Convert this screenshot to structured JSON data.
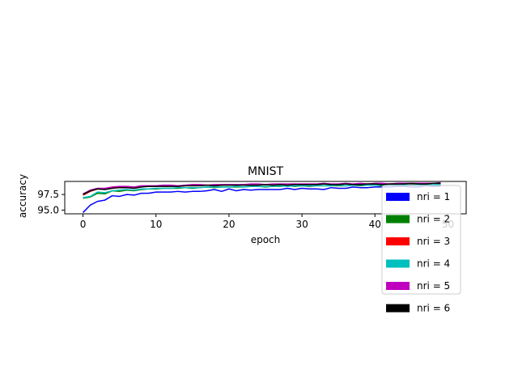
{
  "chart_data": {
    "type": "line",
    "title": "MNIST",
    "xlabel": "epoch",
    "ylabel": "accuracy",
    "xlim": [
      -2.5,
      52.5
    ],
    "ylim": [
      94.4,
      99.6
    ],
    "xticks": [
      0,
      10,
      20,
      30,
      40,
      50
    ],
    "xtick_labels": [
      "0",
      "10",
      "20",
      "30",
      "40",
      "50"
    ],
    "yticks": [
      95.0,
      97.5
    ],
    "ytick_labels": [
      "95.0",
      "97.5"
    ],
    "grid": false,
    "legend_position": "lower-right",
    "x": [
      0,
      1,
      2,
      3,
      4,
      5,
      6,
      7,
      8,
      9,
      10,
      11,
      12,
      13,
      14,
      15,
      16,
      17,
      18,
      19,
      20,
      21,
      22,
      23,
      24,
      25,
      26,
      27,
      28,
      29,
      30,
      31,
      32,
      33,
      34,
      35,
      36,
      37,
      38,
      39,
      40,
      41,
      42,
      43,
      44,
      45,
      46,
      47,
      48,
      49
    ],
    "series": [
      {
        "name": "nri = 1",
        "color": "#0000ff",
        "values": [
          94.6,
          95.8,
          96.4,
          96.6,
          97.3,
          97.2,
          97.5,
          97.4,
          97.7,
          97.7,
          97.9,
          97.9,
          97.9,
          98.0,
          97.9,
          98.0,
          98.0,
          98.1,
          98.3,
          98.0,
          98.4,
          98.1,
          98.3,
          98.2,
          98.3,
          98.3,
          98.3,
          98.3,
          98.5,
          98.3,
          98.5,
          98.4,
          98.4,
          98.3,
          98.6,
          98.5,
          98.5,
          98.7,
          98.6,
          98.6,
          98.7,
          98.7,
          98.7,
          98.8,
          98.8,
          98.7,
          98.7,
          98.9,
          98.8,
          98.8
        ]
      },
      {
        "name": "nri = 2",
        "color": "#008000",
        "values": [
          96.9,
          97.1,
          97.7,
          97.6,
          98.1,
          98.0,
          98.2,
          98.1,
          98.3,
          98.4,
          98.4,
          98.5,
          98.5,
          98.5,
          98.6,
          98.5,
          98.6,
          98.7,
          98.6,
          98.7,
          98.7,
          98.7,
          98.7,
          98.8,
          98.8,
          98.7,
          98.8,
          98.8,
          98.9,
          98.8,
          98.9,
          98.8,
          98.9,
          98.9,
          98.9,
          98.9,
          98.9,
          99.0,
          98.9,
          99.0,
          99.0,
          98.9,
          99.0,
          99.0,
          99.0,
          99.0,
          99.0,
          99.1,
          99.0,
          99.1
        ]
      },
      {
        "name": "nri = 3",
        "color": "#ff0000",
        "values": [
          97.4,
          98.0,
          98.4,
          98.3,
          98.6,
          98.7,
          98.7,
          98.6,
          98.8,
          98.8,
          98.8,
          98.9,
          98.9,
          98.8,
          98.9,
          99.0,
          99.0,
          99.0,
          98.9,
          99.0,
          99.1,
          99.0,
          99.1,
          99.0,
          99.1,
          99.1,
          99.0,
          99.1,
          99.1,
          99.2,
          99.0,
          99.1,
          99.1,
          99.2,
          99.1,
          99.1,
          99.2,
          99.1,
          99.2,
          99.2,
          99.2,
          99.1,
          99.2,
          99.2,
          99.3,
          99.2,
          99.2,
          99.2,
          99.3,
          99.2
        ]
      },
      {
        "name": "nri = 4",
        "color": "#00bfbf",
        "values": [
          97.0,
          97.2,
          97.9,
          97.8,
          98.1,
          98.2,
          98.3,
          98.2,
          98.4,
          98.4,
          98.5,
          98.5,
          98.5,
          98.6,
          98.6,
          98.6,
          98.6,
          98.7,
          98.7,
          98.7,
          98.7,
          98.8,
          98.7,
          98.8,
          98.8,
          98.8,
          98.8,
          98.9,
          98.8,
          98.9,
          98.9,
          98.9,
          98.9,
          98.9,
          98.9,
          99.0,
          98.9,
          99.0,
          99.0,
          99.0,
          99.0,
          99.0,
          99.0,
          99.0,
          99.1,
          99.0,
          99.1,
          99.0,
          99.1,
          99.1
        ]
      },
      {
        "name": "nri = 5",
        "color": "#bf00bf",
        "values": [
          97.6,
          98.2,
          98.5,
          98.5,
          98.7,
          98.8,
          98.8,
          98.7,
          98.9,
          98.9,
          98.9,
          99.0,
          99.0,
          98.9,
          99.0,
          99.1,
          99.1,
          99.0,
          99.1,
          99.1,
          99.1,
          99.1,
          99.1,
          99.2,
          99.2,
          99.1,
          99.2,
          99.2,
          99.2,
          99.2,
          99.2,
          99.2,
          99.2,
          99.3,
          99.2,
          99.2,
          99.3,
          99.2,
          99.3,
          99.2,
          99.3,
          99.3,
          99.2,
          99.3,
          99.3,
          99.3,
          99.3,
          99.3,
          99.3,
          99.4
        ]
      },
      {
        "name": "nri = 6",
        "color": "#000000",
        "values": [
          97.5,
          98.1,
          98.4,
          98.3,
          98.5,
          98.6,
          98.6,
          98.5,
          98.7,
          98.8,
          98.8,
          98.8,
          98.8,
          98.8,
          98.9,
          98.9,
          98.9,
          99.0,
          98.9,
          99.0,
          99.0,
          99.0,
          99.0,
          99.0,
          99.0,
          99.1,
          99.0,
          99.1,
          99.0,
          99.1,
          99.1,
          99.1,
          99.1,
          99.2,
          99.1,
          99.1,
          99.2,
          99.1,
          99.1,
          99.2,
          99.2,
          99.1,
          99.2,
          99.2,
          99.2,
          99.3,
          99.2,
          99.2,
          99.3,
          99.3
        ]
      }
    ]
  }
}
